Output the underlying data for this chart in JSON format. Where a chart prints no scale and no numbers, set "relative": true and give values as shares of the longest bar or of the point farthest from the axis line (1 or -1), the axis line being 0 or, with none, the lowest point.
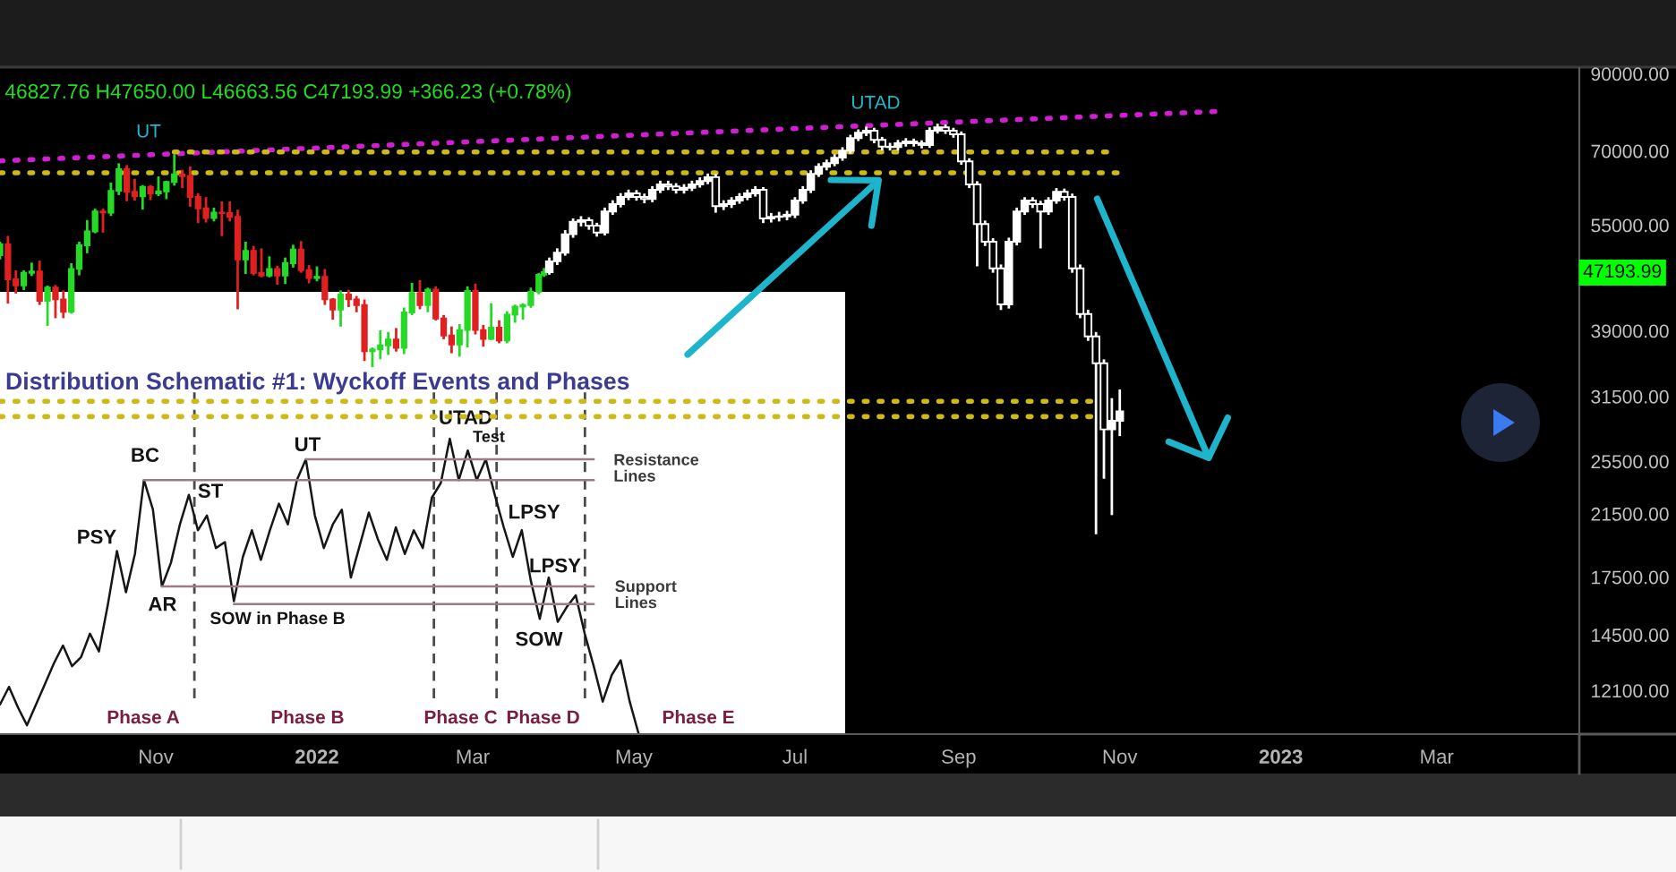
{
  "chart_data": [
    {
      "type": "candlestick",
      "subtitle": "46827.76 H47650.00 L46663.56 C47193.99 +366.23 (+0.78%)",
      "log": true,
      "xlim": [
        "2021-09-03",
        "2023-04-24"
      ],
      "xticks": [
        {
          "value": "2021-11-01",
          "label": "Nov"
        },
        {
          "value": "2022-01-01",
          "label": "2022"
        },
        {
          "value": "2022-03-01",
          "label": "Mar"
        },
        {
          "value": "2022-05-01",
          "label": "May"
        },
        {
          "value": "2022-07-01",
          "label": "Jul"
        },
        {
          "value": "2022-09-01",
          "label": "Sep"
        },
        {
          "value": "2022-11-01",
          "label": "Nov"
        },
        {
          "value": "2023-01-01",
          "label": "2023"
        },
        {
          "value": "2023-03-01",
          "label": "Mar"
        }
      ],
      "ylim": [
        10500,
        91700
      ],
      "yticks": [
        {
          "value": 90000,
          "label": "90000.00"
        },
        {
          "value": 70000,
          "label": "70000.00"
        },
        {
          "value": 55000,
          "label": "55000.00"
        },
        {
          "value": 39000,
          "label": "39000.00"
        },
        {
          "value": 31500,
          "label": "31500.00"
        },
        {
          "value": 25500,
          "label": "25500.00"
        },
        {
          "value": 21500,
          "label": "21500.00"
        },
        {
          "value": 17500,
          "label": "17500.00"
        },
        {
          "value": 14500,
          "label": "14500.00"
        },
        {
          "value": 12100,
          "label": "12100.00"
        }
      ],
      "annotations": [
        "UT",
        "UTAD",
        "47193.99"
      ],
      "series": [
        {
          "type": "candlestick",
          "x": [
            "2021-09-03",
            "2021-09-06",
            "2021-09-09",
            "2021-09-12",
            "2021-09-15",
            "2021-09-18",
            "2021-09-21",
            "2021-09-24",
            "2021-09-27",
            "2021-09-30",
            "2021-10-03",
            "2021-10-06",
            "2021-10-09",
            "2021-10-12",
            "2021-10-15",
            "2021-10-18",
            "2021-10-21",
            "2021-10-24",
            "2021-10-27",
            "2021-10-30",
            "2021-11-02",
            "2021-11-05",
            "2021-11-08",
            "2021-11-11",
            "2021-11-14",
            "2021-11-17",
            "2021-11-20",
            "2021-11-23",
            "2021-11-26",
            "2021-11-29",
            "2021-12-02",
            "2021-12-05",
            "2021-12-08",
            "2021-12-11",
            "2021-12-14",
            "2021-12-17",
            "2021-12-20",
            "2021-12-23",
            "2021-12-26",
            "2021-12-29",
            "2022-01-01",
            "2022-01-04",
            "2022-01-07",
            "2022-01-10",
            "2022-01-13",
            "2022-01-16",
            "2022-01-19",
            "2022-01-22",
            "2022-01-25",
            "2022-01-28",
            "2022-01-31",
            "2022-02-03",
            "2022-02-06",
            "2022-02-09",
            "2022-02-12",
            "2022-02-15",
            "2022-02-18",
            "2022-02-21",
            "2022-02-24",
            "2022-02-27",
            "2022-03-02",
            "2022-03-05",
            "2022-03-08",
            "2022-03-11",
            "2022-03-14",
            "2022-03-17",
            "2022-03-20",
            "2022-03-23",
            "2022-03-26",
            "2022-03-28"
          ],
          "ohlc": [
            [
              49900,
              51900,
              49400,
              51700
            ],
            [
              51700,
              52900,
              42800,
              46100
            ],
            [
              46100,
              47300,
              44200,
              45200
            ],
            [
              45200,
              47300,
              44700,
              47100
            ],
            [
              47100,
              48500,
              46800,
              47300
            ],
            [
              47300,
              48800,
              42600,
              43000
            ],
            [
              43000,
              45000,
              39800,
              44900
            ],
            [
              44900,
              45100,
              40800,
              43200
            ],
            [
              43200,
              44300,
              40800,
              41500
            ],
            [
              41500,
              48400,
              41400,
              47700
            ],
            [
              47700,
              51900,
              46900,
              51500
            ],
            [
              51500,
              55700,
              50400,
              53900
            ],
            [
              53900,
              57800,
              53800,
              57500
            ],
            [
              57500,
              57800,
              53900,
              57300
            ],
            [
              57300,
              62900,
              56900,
              61500
            ],
            [
              61500,
              67000,
              60900,
              66000
            ],
            [
              66000,
              66600,
              59700,
              61300
            ],
            [
              61300,
              63700,
              59800,
              60400
            ],
            [
              60400,
              62400,
              58100,
              62300
            ],
            [
              62300,
              62400,
              59900,
              61000
            ],
            [
              61000,
              64200,
              60700,
              61400
            ],
            [
              61400,
              63300,
              60100,
              63300
            ],
            [
              63300,
              69000,
              62800,
              64900
            ],
            [
              64900,
              65600,
              62300,
              64500
            ],
            [
              64500,
              66300,
              58600,
              60300
            ],
            [
              60300,
              60800,
              55600,
              58100
            ],
            [
              58100,
              60000,
              55700,
              56300
            ],
            [
              56300,
              58000,
              55900,
              57300
            ],
            [
              57300,
              59200,
              53300,
              57200
            ],
            [
              57200,
              59200,
              55900,
              56500
            ],
            [
              56500,
              57600,
              42000,
              49200
            ],
            [
              49200,
              51900,
              47100,
              50600
            ],
            [
              50600,
              51200,
              46900,
              47100
            ],
            [
              47100,
              50800,
              46600,
              46700
            ],
            [
              46700,
              49500,
              46600,
              47700
            ],
            [
              47700,
              48000,
              45500,
              46700
            ],
            [
              46700,
              49300,
              45600,
              48600
            ],
            [
              48600,
              51400,
              48100,
              50800
            ],
            [
              50800,
              52000,
              47300,
              47500
            ],
            [
              47500,
              48100,
              45700,
              46300
            ],
            [
              46300,
              47900,
              46000,
              46500
            ],
            [
              46500,
              47500,
              42600,
              43200
            ],
            [
              43200,
              43200,
              40600,
              41800
            ],
            [
              41800,
              44300,
              39700,
              43900
            ],
            [
              43900,
              44400,
              42300,
              43200
            ],
            [
              43200,
              43500,
              41600,
              42400
            ],
            [
              42400,
              43000,
              35500,
              36500
            ],
            [
              36500,
              36800,
              34800,
              36700
            ],
            [
              36700,
              38900,
              35700,
              37200
            ],
            [
              37200,
              38700,
              36200,
              37900
            ],
            [
              37900,
              39200,
              36600,
              36900
            ],
            [
              36900,
              41900,
              36300,
              41400
            ],
            [
              41400,
              45400,
              41200,
              44100
            ],
            [
              44100,
              45800,
              42000,
              42400
            ],
            [
              42400,
              44700,
              41600,
              44600
            ],
            [
              44600,
              44900,
              40500,
              40600
            ],
            [
              40600,
              40900,
              38100,
              38400
            ],
            [
              38400,
              39400,
              36400,
              37300
            ],
            [
              37300,
              39700,
              36000,
              39100
            ],
            [
              39100,
              44900,
              37100,
              44400
            ],
            [
              44400,
              45300,
              38700,
              39100
            ],
            [
              39100,
              39600,
              37200,
              38000
            ],
            [
              38000,
              42500,
              38000,
              39400
            ],
            [
              39400,
              40200,
              37600,
              37800
            ],
            [
              37800,
              41400,
              37600,
              41100
            ],
            [
              41100,
              42300,
              40200,
              42200
            ],
            [
              42200,
              42500,
              40600,
              42400
            ],
            [
              42400,
              44700,
              42200,
              44300
            ],
            [
              44300,
              46900,
              44100,
              46800
            ],
            [
              46827.76,
              47650.0,
              46663.56,
              47193.99
            ]
          ],
          "colors": [
            "#26d926",
            "#e02020",
            "#e02020",
            "#26d926",
            "#26d926",
            "#e02020",
            "#26d926",
            "#e02020",
            "#e02020",
            "#26d926",
            "#26d926",
            "#26d926",
            "#26d926",
            "#e02020",
            "#26d926",
            "#26d926",
            "#e02020",
            "#e02020",
            "#26d926",
            "#e02020",
            "#26d926",
            "#26d926",
            "#26d926",
            "#e02020",
            "#e02020",
            "#e02020",
            "#e02020",
            "#26d926",
            "#e02020",
            "#e02020",
            "#e02020",
            "#26d926",
            "#e02020",
            "#e02020",
            "#26d926",
            "#e02020",
            "#26d926",
            "#26d926",
            "#e02020",
            "#e02020",
            "#26d926",
            "#e02020",
            "#e02020",
            "#26d926",
            "#e02020",
            "#e02020",
            "#e02020",
            "#26d926",
            "#26d926",
            "#26d926",
            "#e02020",
            "#26d926",
            "#26d926",
            "#e02020",
            "#26d926",
            "#e02020",
            "#e02020",
            "#e02020",
            "#26d926",
            "#26d926",
            "#e02020",
            "#e02020",
            "#26d926",
            "#e02020",
            "#26d926",
            "#26d926",
            "#26d926",
            "#26d926",
            "#26d926",
            "#26d926"
          ]
        },
        {
          "type": "candlestick",
          "color": "#ffffff",
          "x": [
            "2022-03-30",
            "2022-04-02",
            "2022-04-05",
            "2022-04-08",
            "2022-04-11",
            "2022-04-14",
            "2022-04-17",
            "2022-04-20",
            "2022-04-23",
            "2022-04-26",
            "2022-04-29",
            "2022-05-02",
            "2022-05-05",
            "2022-05-08",
            "2022-05-11",
            "2022-05-14",
            "2022-05-17",
            "2022-05-20",
            "2022-05-23",
            "2022-05-26",
            "2022-05-29",
            "2022-06-01",
            "2022-06-04",
            "2022-06-07",
            "2022-06-10",
            "2022-06-13",
            "2022-06-16",
            "2022-06-19",
            "2022-06-22",
            "2022-06-25",
            "2022-06-28",
            "2022-07-01",
            "2022-07-04",
            "2022-07-07",
            "2022-07-10",
            "2022-07-13",
            "2022-07-16",
            "2022-07-19",
            "2022-07-22",
            "2022-07-25",
            "2022-07-28",
            "2022-07-31",
            "2022-08-03",
            "2022-08-06",
            "2022-08-09",
            "2022-08-12",
            "2022-08-15",
            "2022-08-18",
            "2022-08-21",
            "2022-08-24",
            "2022-08-27",
            "2022-08-30",
            "2022-09-02",
            "2022-09-05",
            "2022-09-08",
            "2022-09-11",
            "2022-09-14",
            "2022-09-17",
            "2022-09-20",
            "2022-09-23",
            "2022-09-26",
            "2022-09-29",
            "2022-10-02",
            "2022-10-05",
            "2022-10-08",
            "2022-10-11",
            "2022-10-14",
            "2022-10-17",
            "2022-10-20",
            "2022-10-23",
            "2022-10-26",
            "2022-10-29",
            "2022-11-01"
          ],
          "ohlc": [
            [
              47200,
              49300,
              47000,
              48900
            ],
            [
              48900,
              50800,
              48500,
              50300
            ],
            [
              50300,
              53900,
              50000,
              53400
            ],
            [
              53400,
              56000,
              53000,
              55600
            ],
            [
              55600,
              56400,
              55000,
              55900
            ],
            [
              55900,
              56200,
              54400,
              54900
            ],
            [
              54900,
              55200,
              53200,
              53700
            ],
            [
              53700,
              58000,
              53400,
              57500
            ],
            [
              57500,
              59400,
              57100,
              58900
            ],
            [
              58900,
              60800,
              58500,
              60300
            ],
            [
              60300,
              61500,
              59900,
              61000
            ],
            [
              61000,
              61400,
              59800,
              60300
            ],
            [
              60300,
              60700,
              59300,
              59900
            ],
            [
              59900,
              62200,
              59500,
              61700
            ],
            [
              61700,
              63300,
              61300,
              62800
            ],
            [
              62800,
              63300,
              61900,
              62400
            ],
            [
              62400,
              62800,
              61200,
              61700
            ],
            [
              61700,
              62600,
              61200,
              62100
            ],
            [
              62100,
              63300,
              61700,
              62800
            ],
            [
              62800,
              64000,
              62400,
              63500
            ],
            [
              63500,
              64800,
              63100,
              64300
            ],
            [
              64300,
              64700,
              57500,
              58500
            ],
            [
              58500,
              59400,
              58000,
              58900
            ],
            [
              58900,
              60000,
              58400,
              59600
            ],
            [
              59600,
              60800,
              59200,
              60300
            ],
            [
              60300,
              61500,
              59900,
              61000
            ],
            [
              61000,
              62200,
              60600,
              61700
            ],
            [
              61700,
              62000,
              55600,
              56200
            ],
            [
              56200,
              57000,
              55700,
              56500
            ],
            [
              56500,
              57200,
              55900,
              56600
            ],
            [
              56600,
              57400,
              56100,
              56900
            ],
            [
              56900,
              60000,
              56500,
              59600
            ],
            [
              59600,
              62200,
              59200,
              61700
            ],
            [
              61700,
              65500,
              61300,
              65000
            ],
            [
              65000,
              67000,
              64600,
              66500
            ],
            [
              66500,
              67800,
              66000,
              67300
            ],
            [
              67300,
              69000,
              66900,
              68500
            ],
            [
              68500,
              70600,
              68100,
              70100
            ],
            [
              70100,
              73500,
              69700,
              73000
            ],
            [
              73000,
              74800,
              72600,
              74300
            ],
            [
              74300,
              75500,
              73800,
              74800
            ],
            [
              74800,
              75200,
              72100,
              72600
            ],
            [
              72600,
              73000,
              70400,
              71000
            ],
            [
              71000,
              71600,
              70400,
              70900
            ],
            [
              70900,
              72300,
              70400,
              71800
            ],
            [
              71800,
              72700,
              71300,
              72200
            ],
            [
              72200,
              72600,
              71300,
              71800
            ],
            [
              71800,
              72200,
              70900,
              71400
            ],
            [
              71400,
              75300,
              71000,
              74800
            ],
            [
              74800,
              76200,
              74400,
              75600
            ],
            [
              75600,
              76000,
              74300,
              74800
            ],
            [
              74800,
              75200,
              73400,
              73900
            ],
            [
              73900,
              74300,
              67200,
              67700
            ],
            [
              67700,
              68100,
              62300,
              62800
            ],
            [
              62800,
              63200,
              48300,
              55200
            ],
            [
              55200,
              55600,
              51600,
              52100
            ],
            [
              52100,
              52500,
              47300,
              47800
            ],
            [
              47800,
              48200,
              41900,
              42500
            ],
            [
              42500,
              52600,
              42100,
              52100
            ],
            [
              52100,
              58000,
              51700,
              57500
            ],
            [
              57500,
              60000,
              57100,
              59600
            ],
            [
              59600,
              60000,
              58400,
              58900
            ],
            [
              58900,
              59300,
              51200,
              57500
            ],
            [
              57500,
              60000,
              57100,
              59600
            ],
            [
              59600,
              61800,
              59200,
              61300
            ],
            [
              61300,
              61700,
              59800,
              60300
            ],
            [
              60300,
              60700,
              47300,
              47800
            ],
            [
              47800,
              48200,
              40800,
              41200
            ],
            [
              41200,
              41600,
              37900,
              38300
            ],
            [
              38300,
              38700,
              20200,
              35100
            ],
            [
              35100,
              35400,
              24200,
              28300
            ],
            [
              28300,
              31200,
              21500,
              29100
            ],
            [
              29100,
              32100,
              27800,
              30000
            ]
          ]
        },
        {
          "type": "line",
          "x": [
            "2021-09-03",
            "2022-12-07"
          ],
          "values": [
            67800,
            79600
          ],
          "color": "#d21ed2",
          "line_style": "dotted"
        },
        {
          "type": "line",
          "x": [
            "2021-11-08",
            "2022-10-27"
          ],
          "values": [
            69800,
            69800
          ],
          "color": "#cdb917",
          "line_style": "dotted"
        },
        {
          "type": "line",
          "x": [
            "2021-09-03",
            "2022-10-31"
          ],
          "values": [
            65200,
            65200
          ],
          "color": "#cdb917",
          "line_style": "dotted"
        },
        {
          "type": "line",
          "x": [
            "2021-09-03",
            "2022-10-21"
          ],
          "values": [
            31000,
            31000
          ],
          "color": "#cdb917",
          "line_style": "dotted"
        },
        {
          "type": "line",
          "x": [
            "2021-09-03",
            "2022-10-21"
          ],
          "values": [
            29500,
            29500
          ],
          "color": "#cdb917",
          "line_style": "dotted"
        }
      ]
    },
    {
      "type": "line",
      "relative": true,
      "title": "Distribution Schematic #1: Wyckoff Events and Phases",
      "categories": [
        null,
        null,
        null,
        null,
        null,
        null,
        null,
        null,
        null,
        null,
        null,
        null,
        null,
        null,
        null,
        null,
        null,
        null,
        null,
        null,
        null,
        null,
        null,
        null,
        null,
        null,
        null,
        null,
        null,
        null,
        null,
        null,
        null,
        null,
        null,
        null,
        null,
        null,
        null,
        null,
        null,
        null,
        null,
        null,
        null,
        null,
        null,
        null,
        null,
        null,
        null,
        null,
        null,
        null,
        null,
        null,
        null,
        null,
        null,
        null,
        null,
        null,
        null,
        null,
        null,
        null,
        null,
        null,
        null,
        null,
        null,
        null
      ],
      "series": [
        {
          "color": "#161616",
          "values": [
            0.1,
            0.16,
            0.09,
            0.03,
            0.1,
            0.17,
            0.24,
            0.3,
            0.23,
            0.26,
            0.34,
            0.28,
            0.44,
            0.62,
            0.48,
            0.61,
            0.86,
            0.76,
            0.5,
            0.58,
            0.71,
            0.81,
            0.69,
            0.74,
            0.63,
            0.65,
            0.45,
            0.6,
            0.69,
            0.59,
            0.69,
            0.78,
            0.71,
            0.86,
            0.93,
            0.74,
            0.63,
            0.71,
            0.76,
            0.53,
            0.64,
            0.75,
            0.66,
            0.59,
            0.7,
            0.61,
            0.69,
            0.63,
            0.8,
            0.85,
            1,
            0.86,
            0.96,
            0.86,
            0.93,
            0.81,
            0.7,
            0.6,
            0.69,
            0.52,
            0.39,
            0.53,
            0.38,
            0.43,
            0.47,
            0.34,
            0.23,
            0.11,
            0.2,
            0.25,
            0.11,
            0
          ]
        },
        {
          "color": "#9c7b88",
          "values": [
            null,
            null,
            null,
            null,
            null,
            null,
            null,
            null,
            null,
            null,
            null,
            null,
            null,
            null,
            null,
            null,
            null,
            null,
            null,
            null,
            null,
            null,
            null,
            null,
            null,
            null,
            null,
            null,
            null,
            null,
            null,
            null,
            null,
            null,
            0.93,
            0.93,
            0.93,
            0.93,
            0.93,
            0.93,
            0.93,
            0.93,
            0.93,
            0.93,
            0.93,
            0.93,
            0.93,
            0.93,
            0.93,
            0.93,
            0.93,
            0.93,
            0.93,
            0.93,
            0.93,
            0.93,
            0.93,
            0.93,
            0.93,
            0.93,
            0.93,
            0.93,
            0.93,
            0.93,
            0.93,
            0.93,
            0.93,
            null,
            null,
            null,
            null,
            null
          ]
        },
        {
          "color": "#9c7b88",
          "values": [
            null,
            null,
            null,
            null,
            null,
            null,
            null,
            null,
            null,
            null,
            null,
            null,
            null,
            null,
            null,
            null,
            0.86,
            0.86,
            0.86,
            0.86,
            0.86,
            0.86,
            0.86,
            0.86,
            0.86,
            0.86,
            0.86,
            0.86,
            0.86,
            0.86,
            0.86,
            0.86,
            0.86,
            0.86,
            0.86,
            0.86,
            0.86,
            0.86,
            0.86,
            0.86,
            0.86,
            0.86,
            0.86,
            0.86,
            0.86,
            0.86,
            0.86,
            0.86,
            0.86,
            0.86,
            0.86,
            0.86,
            0.86,
            0.86,
            0.86,
            0.86,
            0.86,
            0.86,
            0.86,
            0.86,
            0.86,
            0.86,
            0.86,
            0.86,
            0.86,
            0.86,
            0.86,
            null,
            null,
            null,
            null,
            null
          ]
        },
        {
          "color": "#9c7b88",
          "values": [
            null,
            null,
            null,
            null,
            null,
            null,
            null,
            null,
            null,
            null,
            null,
            null,
            null,
            null,
            null,
            null,
            null,
            null,
            0.5,
            0.5,
            0.5,
            0.5,
            0.5,
            0.5,
            0.5,
            0.5,
            0.5,
            0.5,
            0.5,
            0.5,
            0.5,
            0.5,
            0.5,
            0.5,
            0.5,
            0.5,
            0.5,
            0.5,
            0.5,
            0.5,
            0.5,
            0.5,
            0.5,
            0.5,
            0.5,
            0.5,
            0.5,
            0.5,
            0.5,
            0.5,
            0.5,
            0.5,
            0.5,
            0.5,
            0.5,
            0.5,
            0.5,
            0.5,
            0.5,
            0.5,
            0.5,
            0.5,
            0.5,
            0.5,
            0.5,
            0.5,
            0.5,
            null,
            null,
            null,
            null,
            null
          ]
        },
        {
          "color": "#9c7b88",
          "values": [
            null,
            null,
            null,
            null,
            null,
            null,
            null,
            null,
            null,
            null,
            null,
            null,
            null,
            null,
            null,
            null,
            null,
            null,
            null,
            null,
            null,
            null,
            null,
            null,
            null,
            null,
            0.44,
            0.44,
            0.44,
            0.44,
            0.44,
            0.44,
            0.44,
            0.44,
            0.44,
            0.44,
            0.44,
            0.44,
            0.44,
            0.44,
            0.44,
            0.44,
            0.44,
            0.44,
            0.44,
            0.44,
            0.44,
            0.44,
            0.44,
            0.44,
            0.44,
            0.44,
            0.44,
            0.44,
            0.44,
            0.44,
            0.44,
            0.44,
            0.44,
            0.44,
            0.44,
            0.44,
            0.44,
            0.44,
            0.44,
            0.44,
            0.44,
            null,
            null,
            null,
            null,
            null
          ]
        }
      ],
      "annotations": [
        "BC",
        "PSY",
        "ST",
        "AR",
        "SOW in Phase B",
        "UT",
        "UTAD",
        "Test",
        "Resistance\nLines",
        "LPSY",
        "LPSY",
        "Support\nLines",
        "SOW",
        "Phase A",
        "Phase B",
        "Phase C",
        "Phase D",
        "Phase E"
      ]
    }
  ]
}
